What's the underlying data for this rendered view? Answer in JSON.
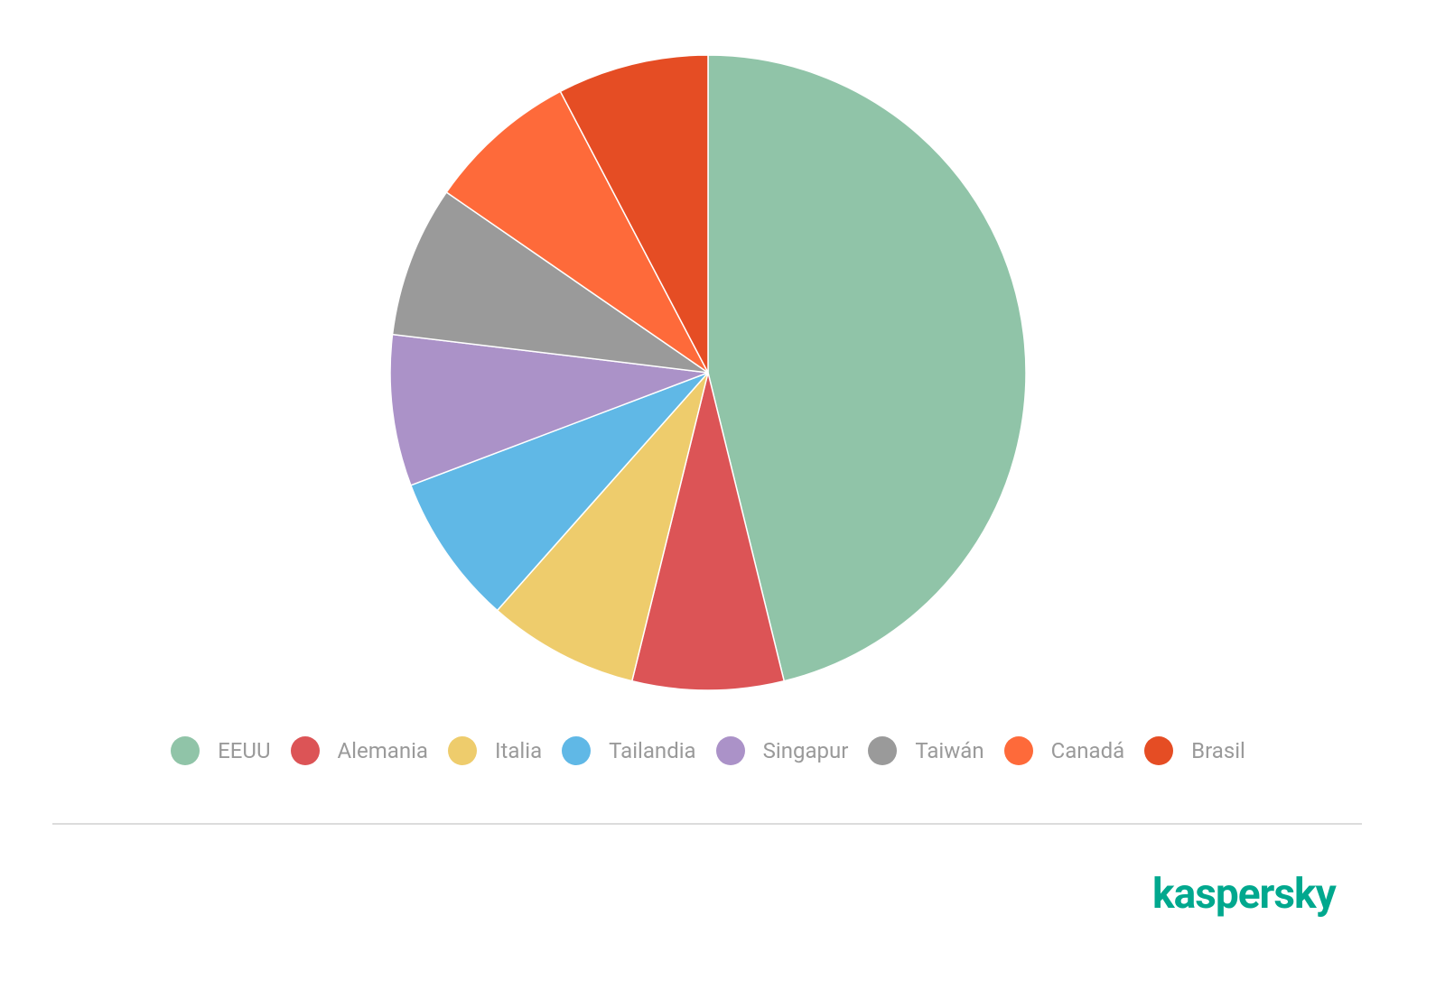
{
  "chart_data": {
    "type": "pie",
    "categories": [
      "EEUU",
      "Alemania",
      "Italia",
      "Tailandia",
      "Singapur",
      "Taiwán",
      "Canadá",
      "Brasil"
    ],
    "values": [
      46.2,
      7.7,
      7.7,
      7.7,
      7.7,
      7.7,
      7.7,
      7.7
    ],
    "colors": [
      "#90c4a8",
      "#dc5456",
      "#eecc6c",
      "#60b8e6",
      "#ab92c8",
      "#9a9a9a",
      "#fe6a3a",
      "#e54d24"
    ],
    "legend": "bottom"
  },
  "logo": "kaspersky"
}
